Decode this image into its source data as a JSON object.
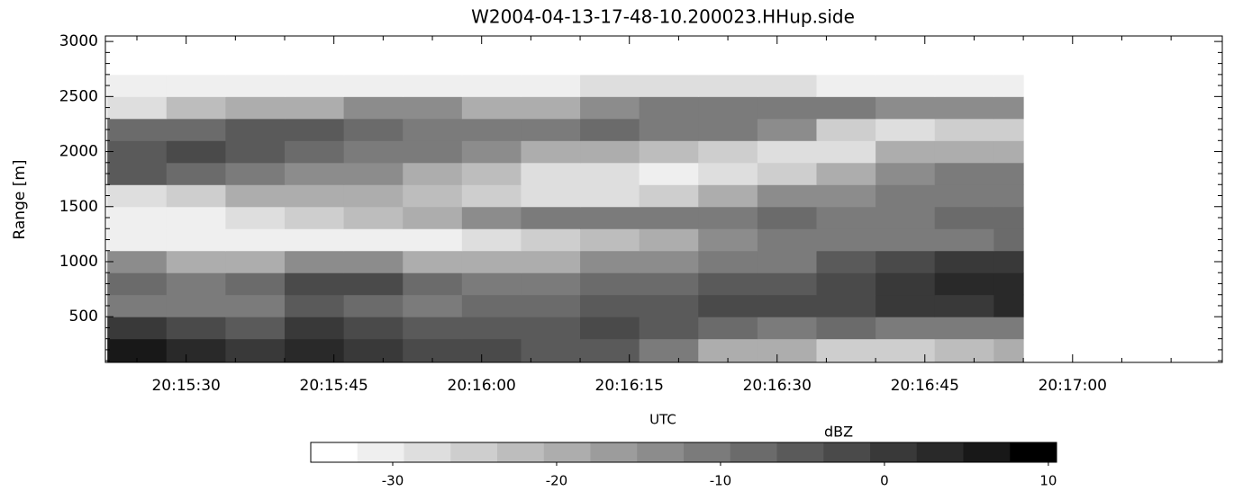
{
  "chart_data": {
    "type": "heatmap",
    "title": "W2004-04-13-17-48-10.200023.HHup.side",
    "x_label": "UTC",
    "y_label": "Range [m]",
    "colorbar_label": "dBZ",
    "xlim": [
      72921.8,
      73035.2
    ],
    "xticks": [
      {
        "value": 72930,
        "label": "20:15:30"
      },
      {
        "value": 72945,
        "label": "20:15:45"
      },
      {
        "value": 72960,
        "label": "20:16:00"
      },
      {
        "value": 72975,
        "label": "20:16:15"
      },
      {
        "value": 72990,
        "label": "20:16:30"
      },
      {
        "value": 73005,
        "label": "20:16:45"
      },
      {
        "value": 73020,
        "label": "20:17:00"
      }
    ],
    "xminor_ticks": [
      72925,
      72935,
      72940,
      72950,
      72955,
      72965,
      72970,
      72980,
      72985,
      72995,
      73000,
      73010,
      73015,
      73025,
      73030
    ],
    "ylim": [
      85,
      3050
    ],
    "yticks": [
      500,
      1000,
      1500,
      2000,
      2500,
      3000
    ],
    "yminor_ticks": [
      100,
      200,
      300,
      400,
      600,
      700,
      800,
      900,
      1100,
      1200,
      1300,
      1400,
      1600,
      1700,
      1800,
      1900,
      2100,
      2200,
      2300,
      2400,
      2600,
      2700,
      2800,
      2900
    ],
    "x_edges": [
      72922,
      72928,
      72934,
      72940,
      72946,
      72952,
      72958,
      72964,
      72970,
      72976,
      72982,
      72988,
      72994,
      73000,
      73006,
      73012,
      73015
    ],
    "y_edges": [
      85,
      300,
      500,
      700,
      900,
      1100,
      1300,
      1500,
      1700,
      1900,
      2100,
      2300,
      2500,
      2700,
      3050
    ],
    "values": [
      [
        5,
        3,
        0,
        2,
        0,
        -2,
        -3,
        -5,
        -5,
        -12,
        -18,
        -20,
        -25,
        -25,
        -22,
        -20
      ],
      [
        0,
        -3,
        -5,
        0,
        -3,
        -5,
        -5,
        -5,
        -3,
        -5,
        -8,
        -10,
        -8,
        -10,
        -12,
        -10
      ],
      [
        -10,
        -12,
        -12,
        -5,
        -8,
        -10,
        -8,
        -8,
        -5,
        -5,
        -3,
        -3,
        -2,
        0,
        0,
        2
      ],
      [
        -8,
        -10,
        -8,
        -3,
        -2,
        -8,
        -10,
        -10,
        -8,
        -8,
        -5,
        -5,
        -2,
        0,
        2,
        3
      ],
      [
        -15,
        -18,
        -18,
        -15,
        -15,
        -18,
        -18,
        -18,
        -15,
        -15,
        -12,
        -10,
        -5,
        -3,
        0,
        0
      ],
      [
        -30,
        -30,
        -30,
        -30,
        -30,
        -30,
        -28,
        -25,
        -22,
        -18,
        -15,
        -12,
        -12,
        -10,
        -10,
        -8
      ],
      [
        -30,
        -30,
        -28,
        -25,
        -22,
        -20,
        -15,
        -12,
        -12,
        -12,
        -10,
        -8,
        -10,
        -10,
        -8,
        -8
      ],
      [
        -28,
        -25,
        -20,
        -18,
        -20,
        -22,
        -25,
        -28,
        -28,
        -25,
        -20,
        -15,
        -15,
        -12,
        -10,
        -10
      ],
      [
        -5,
        -8,
        -10,
        -15,
        -15,
        -18,
        -22,
        -28,
        -28,
        -30,
        -28,
        -25,
        -18,
        -15,
        -12,
        -10
      ],
      [
        -5,
        -3,
        -5,
        -8,
        -10,
        -12,
        -15,
        -18,
        -20,
        -22,
        -25,
        -28,
        -28,
        -20,
        -18,
        -18
      ],
      [
        -8,
        -8,
        -5,
        -5,
        -8,
        -10,
        -12,
        -10,
        -8,
        -10,
        -12,
        -15,
        -25,
        -28,
        -25,
        -25
      ],
      [
        -28,
        -22,
        -20,
        -18,
        -15,
        -15,
        -20,
        -20,
        -15,
        -12,
        -12,
        -10,
        -12,
        -15,
        -15,
        -15
      ],
      [
        -32,
        -32,
        -30,
        -30,
        -30,
        -32,
        -32,
        -30,
        -28,
        -28,
        -28,
        -28,
        -30,
        -30,
        -32,
        -32
      ],
      [
        -33,
        -33,
        -33,
        -33,
        -33,
        -33,
        -33,
        -33,
        -33,
        -33,
        -33,
        -33,
        -33,
        -33,
        -33,
        -33
      ]
    ],
    "clim": [
      -35,
      10.5
    ],
    "cticks": [
      -30,
      -20,
      -10,
      0,
      10
    ],
    "colors": [
      "#ffffff",
      "#efefef",
      "#dedede",
      "#cecece",
      "#bdbdbd",
      "#adadad",
      "#9c9c9c",
      "#8c8c8c",
      "#7b7b7b",
      "#6b6b6b",
      "#5a5a5a",
      "#4a4a4a",
      "#393939",
      "#292929",
      "#181818",
      "#000000"
    ]
  }
}
